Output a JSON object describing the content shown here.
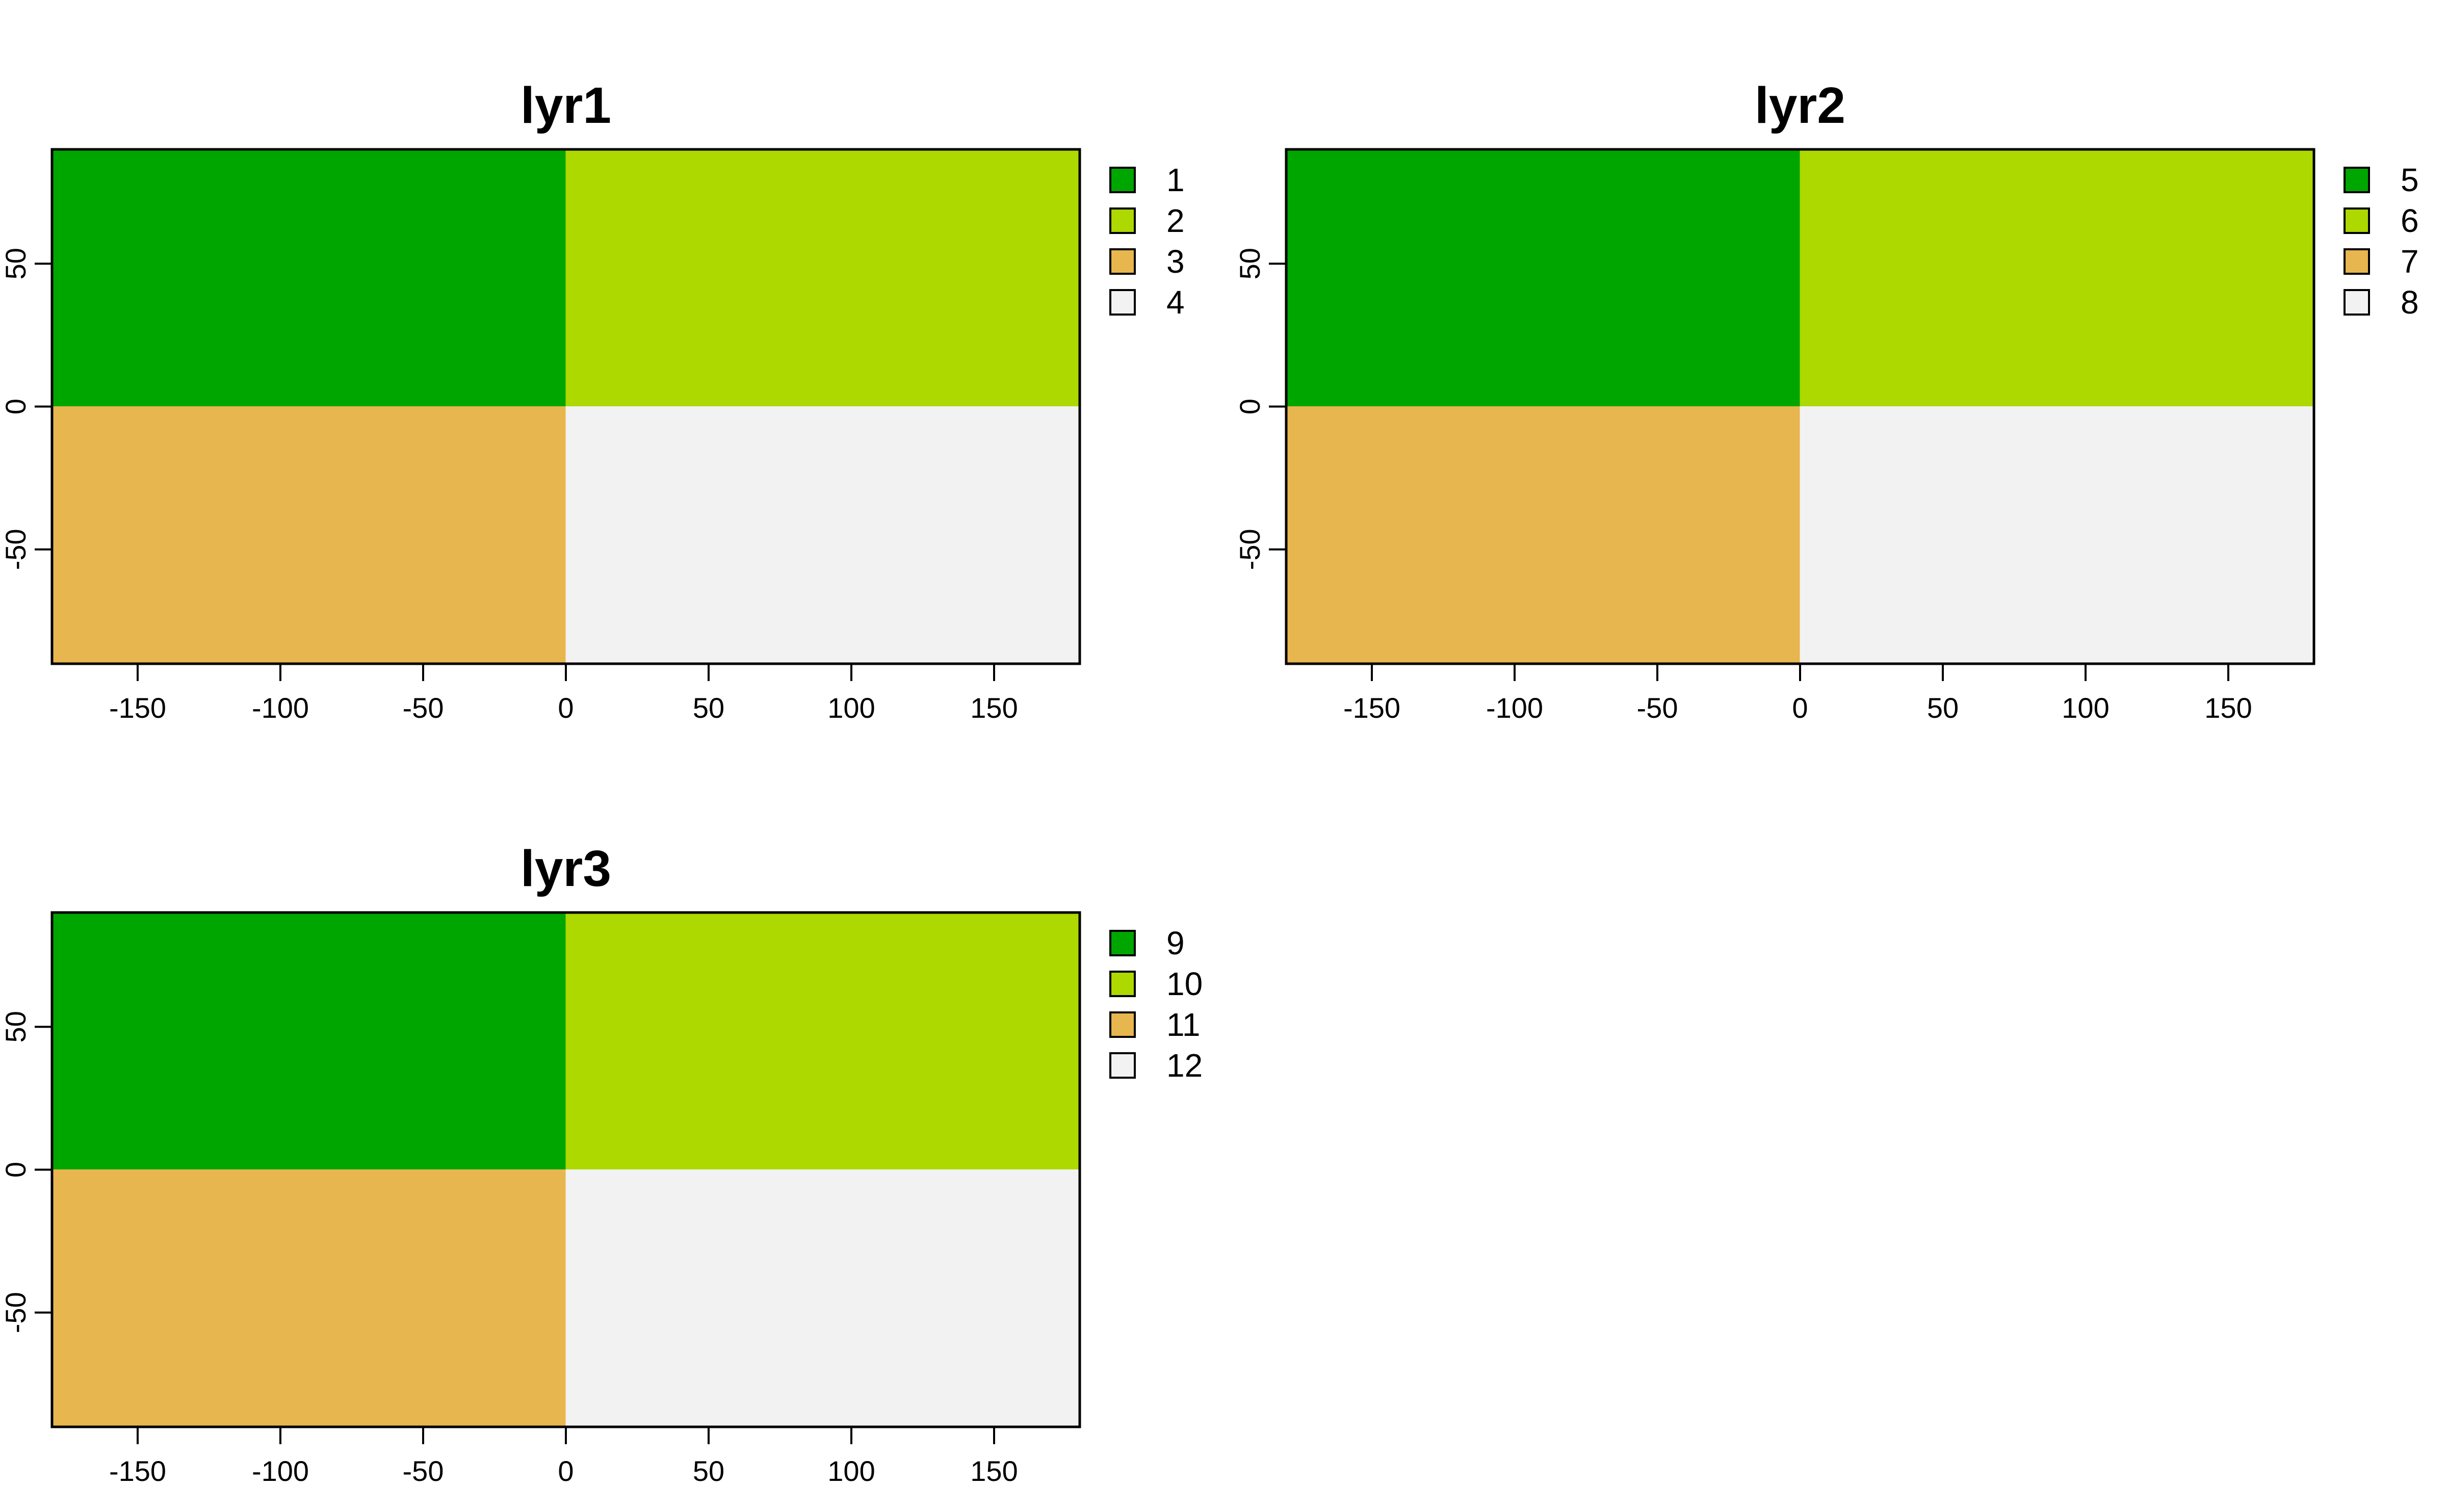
{
  "chart_data": [
    {
      "type": "heatmap",
      "title": "lyr1",
      "xlabel": "",
      "ylabel": "",
      "xlim": [
        -180,
        180
      ],
      "ylim": [
        -90,
        90
      ],
      "x_ticks": [
        -150,
        -100,
        -50,
        0,
        50,
        100,
        150
      ],
      "y_ticks": [
        -50,
        0,
        50
      ],
      "cells": [
        {
          "x": [
            -180,
            0
          ],
          "y": [
            0,
            90
          ],
          "value": "1",
          "color": "#00A600"
        },
        {
          "x": [
            0,
            180
          ],
          "y": [
            0,
            90
          ],
          "value": "2",
          "color": "#ADD800"
        },
        {
          "x": [
            -180,
            0
          ],
          "y": [
            -90,
            0
          ],
          "value": "3",
          "color": "#E8B64E"
        },
        {
          "x": [
            0,
            180
          ],
          "y": [
            -90,
            0
          ],
          "value": "4",
          "color": "#F2F2F2"
        }
      ],
      "legend": [
        {
          "label": "1",
          "color": "#00A600"
        },
        {
          "label": "2",
          "color": "#ADD800"
        },
        {
          "label": "3",
          "color": "#E8B64E"
        },
        {
          "label": "4",
          "color": "#F2F2F2"
        }
      ],
      "legend_placement": "right"
    },
    {
      "type": "heatmap",
      "title": "lyr2",
      "xlabel": "",
      "ylabel": "",
      "xlim": [
        -180,
        180
      ],
      "ylim": [
        -90,
        90
      ],
      "x_ticks": [
        -150,
        -100,
        -50,
        0,
        50,
        100,
        150
      ],
      "y_ticks": [
        -50,
        0,
        50
      ],
      "cells": [
        {
          "x": [
            -180,
            0
          ],
          "y": [
            0,
            90
          ],
          "value": "5",
          "color": "#00A600"
        },
        {
          "x": [
            0,
            180
          ],
          "y": [
            0,
            90
          ],
          "value": "6",
          "color": "#ADD800"
        },
        {
          "x": [
            -180,
            0
          ],
          "y": [
            -90,
            0
          ],
          "value": "7",
          "color": "#E8B64E"
        },
        {
          "x": [
            0,
            180
          ],
          "y": [
            -90,
            0
          ],
          "value": "8",
          "color": "#F2F2F2"
        }
      ],
      "legend": [
        {
          "label": "5",
          "color": "#00A600"
        },
        {
          "label": "6",
          "color": "#ADD800"
        },
        {
          "label": "7",
          "color": "#E8B64E"
        },
        {
          "label": "8",
          "color": "#F2F2F2"
        }
      ],
      "legend_placement": "right"
    },
    {
      "type": "heatmap",
      "title": "lyr3",
      "xlabel": "",
      "ylabel": "",
      "xlim": [
        -180,
        180
      ],
      "ylim": [
        -90,
        90
      ],
      "x_ticks": [
        -150,
        -100,
        -50,
        0,
        50,
        100,
        150
      ],
      "y_ticks": [
        -50,
        0,
        50
      ],
      "cells": [
        {
          "x": [
            -180,
            0
          ],
          "y": [
            0,
            90
          ],
          "value": "9",
          "color": "#00A600"
        },
        {
          "x": [
            0,
            180
          ],
          "y": [
            0,
            90
          ],
          "value": "10",
          "color": "#ADD800"
        },
        {
          "x": [
            -180,
            0
          ],
          "y": [
            -90,
            0
          ],
          "value": "11",
          "color": "#E8B64E"
        },
        {
          "x": [
            0,
            180
          ],
          "y": [
            -90,
            0
          ],
          "value": "12",
          "color": "#F2F2F2"
        }
      ],
      "legend": [
        {
          "label": "9",
          "color": "#00A600"
        },
        {
          "label": "10",
          "color": "#ADD800"
        },
        {
          "label": "11",
          "color": "#E8B64E"
        },
        {
          "label": "12",
          "color": "#F2F2F2"
        }
      ],
      "legend_placement": "right"
    }
  ]
}
